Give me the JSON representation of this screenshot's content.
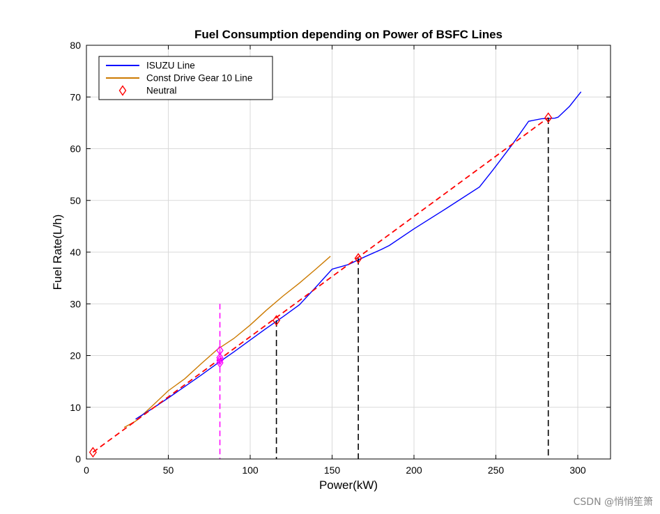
{
  "chart_data": {
    "type": "line",
    "title": "Fuel Consumption depending on Power of BSFC Lines",
    "xlabel": "Power(kW)",
    "ylabel": "Fuel Rate(L/h)",
    "xlim": [
      0,
      320
    ],
    "ylim": [
      0,
      80
    ],
    "xticks": [
      0,
      50,
      100,
      150,
      200,
      250,
      300
    ],
    "yticks": [
      0,
      10,
      20,
      30,
      40,
      50,
      60,
      70,
      80
    ],
    "grid": true,
    "legend_position": "top-left",
    "series": [
      {
        "name": "ISUZU Line",
        "color": "#0000ff",
        "style": "solid",
        "x": [
          30,
          40,
          50,
          60,
          70,
          80,
          90,
          100,
          110,
          120,
          130,
          140,
          150,
          160,
          170,
          180,
          185,
          200,
          220,
          240,
          248,
          260,
          270,
          278,
          286,
          288,
          295,
          302
        ],
        "y": [
          7.7,
          9.7,
          11.8,
          14.0,
          16.2,
          18.5,
          20.7,
          23.0,
          25.3,
          27.5,
          29.8,
          33.2,
          36.7,
          37.6,
          39.1,
          40.5,
          41.3,
          44.5,
          48.5,
          52.6,
          55.8,
          60.8,
          65.3,
          65.8,
          65.9,
          66.1,
          68.2,
          71.0
        ]
      },
      {
        "name": "Const Drive Gear 10 Line",
        "color": "#cc7a00",
        "style": "solid",
        "x": [
          23,
          30,
          40,
          50,
          60,
          70,
          80,
          90,
          100,
          110,
          120,
          130,
          140,
          149
        ],
        "y": [
          6.1,
          7.3,
          10.2,
          13.2,
          15.5,
          18.4,
          21.2,
          23.3,
          25.9,
          28.8,
          31.5,
          34.0,
          36.7,
          39.2
        ]
      },
      {
        "name": "Neutral",
        "color": "#ff0000",
        "style": "markers",
        "marker": "diamond",
        "x": [
          4,
          116,
          166,
          282
        ],
        "y": [
          1.3,
          26.8,
          38.8,
          66.0
        ]
      }
    ],
    "fit_line": {
      "color": "#ff0000",
      "style": "dashed",
      "x": [
        4,
        282
      ],
      "y": [
        1.3,
        66.0
      ]
    },
    "drop_lines": {
      "color": "#000000",
      "style": "dashed",
      "x": [
        116,
        166,
        282
      ],
      "y": [
        26.8,
        38.8,
        66.0
      ]
    },
    "operating_point": {
      "color": "#ff00ff",
      "style": "dashed",
      "x": 81.5,
      "y_range": [
        0,
        30
      ],
      "markers_y": [
        18.6,
        19.1,
        19.6,
        21.0
      ]
    }
  },
  "watermark": "CSDN @悄悄笙箫"
}
